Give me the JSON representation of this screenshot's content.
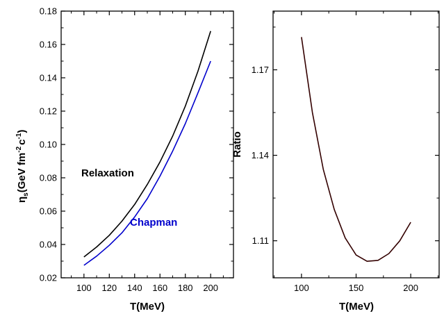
{
  "chart_data": [
    {
      "type": "line",
      "xlabel": "T(MeV)",
      "ylabel": {
        "base": "η",
        "sub": "s",
        "unit_open": "(GeV fm",
        "sup1": "-2",
        "unit_mid": "c",
        "sup2": "-1",
        "unit_close": ")"
      },
      "xlim": [
        82,
        218
      ],
      "ylim": [
        0.02,
        0.18
      ],
      "xticks": [
        "100",
        "120",
        "140",
        "160",
        "180",
        "200"
      ],
      "yticks": [
        "0.02",
        "0.04",
        "0.06",
        "0.08",
        "0.10",
        "0.12",
        "0.14",
        "0.16",
        "0.18"
      ],
      "series": [
        {
          "name": "Relaxation",
          "color": "#000000",
          "x": [
            100,
            110,
            120,
            130,
            140,
            150,
            160,
            170,
            180,
            190,
            200
          ],
          "y": [
            0.0325,
            0.0385,
            0.0455,
            0.054,
            0.064,
            0.076,
            0.0895,
            0.105,
            0.123,
            0.144,
            0.168
          ]
        },
        {
          "name": "Chapman",
          "color": "#0000cc",
          "x": [
            100,
            110,
            120,
            130,
            140,
            150,
            160,
            170,
            180,
            190,
            200
          ],
          "y": [
            0.0275,
            0.033,
            0.0395,
            0.047,
            0.0565,
            0.0675,
            0.081,
            0.096,
            0.1125,
            0.131,
            0.15
          ]
        }
      ],
      "grid": false
    },
    {
      "type": "line",
      "xlabel": "T(MeV)",
      "ylabel": "Ratio",
      "xlim": [
        74,
        226
      ],
      "ylim": [
        1.097,
        1.1906
      ],
      "xticks": [
        "100",
        "150",
        "200"
      ],
      "yticks": [
        "1.11",
        "1.14",
        "1.17"
      ],
      "series": [
        {
          "color": "#330000",
          "x": [
            100,
            110,
            120,
            130,
            140,
            150,
            160,
            170,
            180,
            190,
            200
          ],
          "y": [
            1.1815,
            1.155,
            1.135,
            1.121,
            1.111,
            1.105,
            1.1028,
            1.1031,
            1.1055,
            1.11,
            1.1165
          ]
        }
      ],
      "grid": false
    }
  ]
}
